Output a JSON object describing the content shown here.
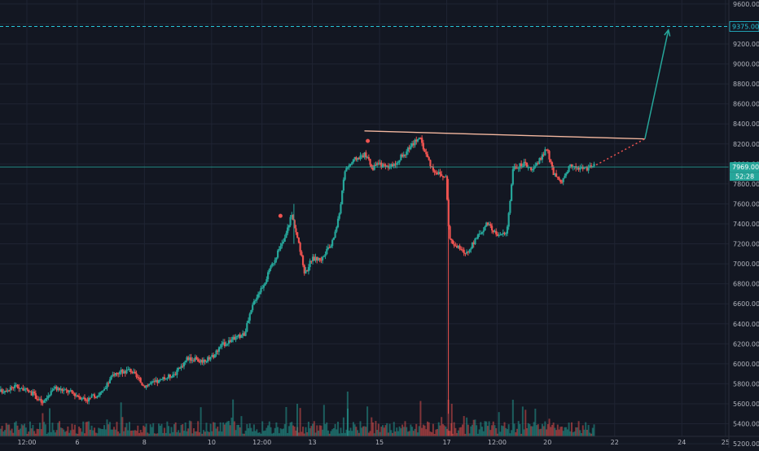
{
  "chart_data": {
    "type": "candlestick",
    "title": "",
    "xlabel": "",
    "ylabel": "",
    "ylim": [
      5160,
      9640
    ],
    "grid": true,
    "price_axis": {
      "position": "right",
      "ticks": [
        5200,
        5400,
        5600,
        5800,
        6000,
        6200,
        6400,
        6600,
        6800,
        7000,
        7200,
        7400,
        7600,
        7800,
        8000,
        8200,
        8400,
        8600,
        8800,
        9000,
        9200,
        9400,
        9600
      ],
      "tick_labels": [
        "5200.00",
        "5400.00",
        "5600.00",
        "5800.00",
        "6000.00",
        "6200.00",
        "6400.00",
        "6600.00",
        "6800.00",
        "7000.00",
        "7200.00",
        "7400.00",
        "7600.00",
        "7800.00",
        "8000.00",
        "8200.00",
        "8400.00",
        "8600.00",
        "8800.00",
        "9000.00",
        "9200.00",
        "9400.00",
        "9600.00"
      ]
    },
    "time_axis": {
      "unit": "days",
      "range": [
        3.7,
        25.4
      ],
      "ticks": [
        {
          "t": 4.5,
          "label": "12:00"
        },
        {
          "t": 6,
          "label": "6"
        },
        {
          "t": 8,
          "label": "8"
        },
        {
          "t": 10,
          "label": "10"
        },
        {
          "t": 11.5,
          "label": "12:00"
        },
        {
          "t": 13,
          "label": "13"
        },
        {
          "t": 15,
          "label": "15"
        },
        {
          "t": 17,
          "label": "17"
        },
        {
          "t": 18.5,
          "label": "12:00"
        },
        {
          "t": 20,
          "label": "20"
        },
        {
          "t": 22,
          "label": "22"
        },
        {
          "t": 24,
          "label": "24"
        },
        {
          "t": 25.3,
          "label": "25"
        }
      ]
    },
    "price_path": [
      [
        3.7,
        5720
      ],
      [
        4.2,
        5780
      ],
      [
        4.7,
        5700
      ],
      [
        5.0,
        5600
      ],
      [
        5.3,
        5760
      ],
      [
        5.8,
        5720
      ],
      [
        6.3,
        5640
      ],
      [
        6.8,
        5720
      ],
      [
        7.1,
        5900
      ],
      [
        7.6,
        5940
      ],
      [
        8.0,
        5780
      ],
      [
        8.5,
        5830
      ],
      [
        9.0,
        5920
      ],
      [
        9.3,
        6060
      ],
      [
        9.7,
        6030
      ],
      [
        10.0,
        6050
      ],
      [
        10.3,
        6180
      ],
      [
        10.6,
        6240
      ],
      [
        11.0,
        6300
      ],
      [
        11.3,
        6640
      ],
      [
        11.6,
        6820
      ],
      [
        11.9,
        7050
      ],
      [
        12.2,
        7250
      ],
      [
        12.4,
        7500
      ],
      [
        12.55,
        7300
      ],
      [
        12.8,
        6900
      ],
      [
        13.0,
        7050
      ],
      [
        13.3,
        7050
      ],
      [
        13.6,
        7200
      ],
      [
        13.8,
        7450
      ],
      [
        14.0,
        7950
      ],
      [
        14.3,
        8050
      ],
      [
        14.6,
        8100
      ],
      [
        14.8,
        7950
      ],
      [
        15.0,
        8000
      ],
      [
        15.3,
        7950
      ],
      [
        15.6,
        8050
      ],
      [
        15.9,
        8150
      ],
      [
        16.2,
        8280
      ],
      [
        16.4,
        8100
      ],
      [
        16.6,
        7950
      ],
      [
        16.8,
        7900
      ],
      [
        17.0,
        7850
      ],
      [
        17.1,
        7250
      ],
      [
        17.3,
        7180
      ],
      [
        17.6,
        7100
      ],
      [
        17.9,
        7250
      ],
      [
        18.2,
        7400
      ],
      [
        18.5,
        7300
      ],
      [
        18.8,
        7300
      ],
      [
        19.0,
        7950
      ],
      [
        19.3,
        8000
      ],
      [
        19.6,
        7950
      ],
      [
        19.8,
        8050
      ],
      [
        20.0,
        8150
      ],
      [
        20.2,
        7900
      ],
      [
        20.45,
        7800
      ],
      [
        20.7,
        8000
      ],
      [
        20.9,
        7950
      ],
      [
        21.2,
        7950
      ],
      [
        21.4,
        7980
      ]
    ],
    "candle_shading": {
      "up_color": "#26a69a",
      "down_color": "#ef5350"
    },
    "volume_bars": true,
    "current_price": {
      "value": 7969.0,
      "label": "7969.00",
      "countdown": "52:28",
      "color": "#26a69a"
    },
    "annotations": {
      "target_line": {
        "value": 9375,
        "label": "9375.00",
        "color": "#26c6da"
      },
      "resistance_line": {
        "from": {
          "t": 14.55,
          "price": 8330
        },
        "to": {
          "t": 22.9,
          "price": 8250
        },
        "color": "#f4b8a0"
      },
      "projection_dotted": {
        "from": {
          "t": 21.45,
          "price": 7990
        },
        "to": {
          "t": 22.9,
          "price": 8250
        },
        "color": "#ef5350"
      },
      "projection_arrow": {
        "from": {
          "t": 22.9,
          "price": 8250
        },
        "to": {
          "t": 23.6,
          "price": 9340
        },
        "color": "#26a69a"
      },
      "markers": [
        {
          "t": 12.05,
          "price": 7480,
          "color": "#ef5350"
        },
        {
          "t": 14.65,
          "price": 8230,
          "color": "#ef5350"
        }
      ]
    }
  }
}
